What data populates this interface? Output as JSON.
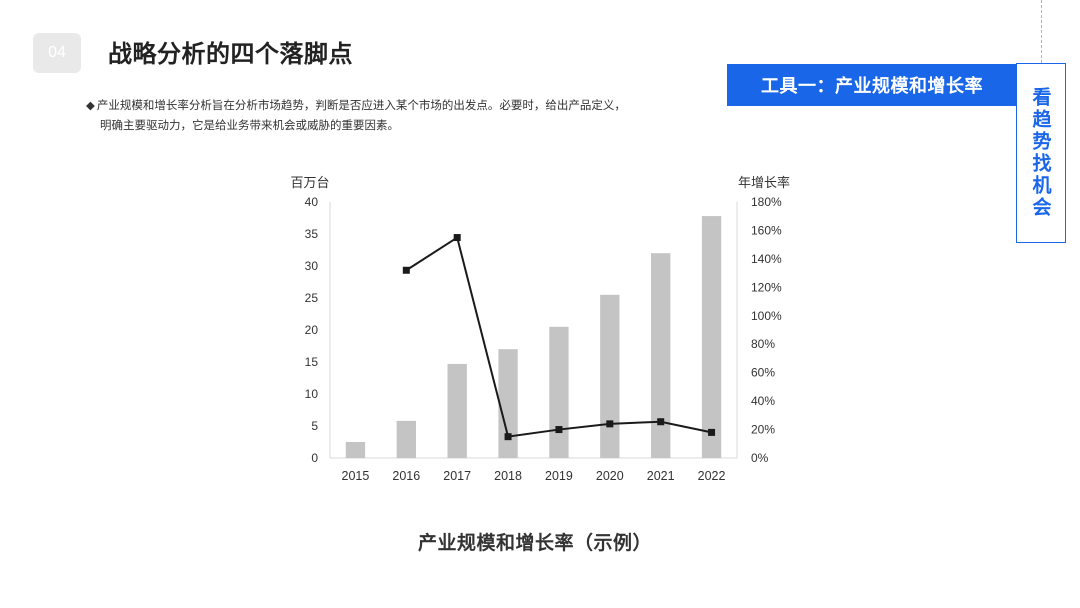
{
  "header": {
    "section_number": "04",
    "title": "战略分析的四个落脚点"
  },
  "description": {
    "bullet": "◆",
    "line1": "产业规模和增长率分析旨在分析市场趋势，判断是否应进入某个市场的出发点。必要时，给出产品定义，",
    "line2": "明确主要驱动力，它是给业务带来机会或威胁的重要因素。"
  },
  "tool_banner": "工具一：产业规模和增长率",
  "side_label": "看趋势找机会",
  "caption": "产业规模和增长率（示例）",
  "colors": {
    "accent": "#1a66e8",
    "bar": "#c4c4c4",
    "line": "#1a1a1a"
  },
  "chart_data": {
    "type": "bar",
    "categories": [
      "2015",
      "2016",
      "2017",
      "2018",
      "2019",
      "2020",
      "2021",
      "2022"
    ],
    "series": [
      {
        "type": "bar",
        "axis": "left",
        "values": [
          2.5,
          5.8,
          14.7,
          17.0,
          20.5,
          25.5,
          32.0,
          37.8
        ]
      },
      {
        "type": "line",
        "axis": "right",
        "marker": "square",
        "values": [
          null,
          132,
          155,
          15,
          20,
          24,
          25.5,
          18
        ]
      }
    ],
    "ylabel": "百万台",
    "y2label": "年增长率",
    "ylim": [
      0,
      40
    ],
    "yticks": [
      "0",
      "5",
      "10",
      "15",
      "20",
      "25",
      "30",
      "35",
      "40"
    ],
    "y2lim": [
      0,
      180
    ],
    "y2ticks": [
      "0%",
      "20%",
      "40%",
      "60%",
      "80%",
      "100%",
      "120%",
      "140%",
      "160%",
      "180%"
    ],
    "grid": false,
    "legend": "none"
  }
}
